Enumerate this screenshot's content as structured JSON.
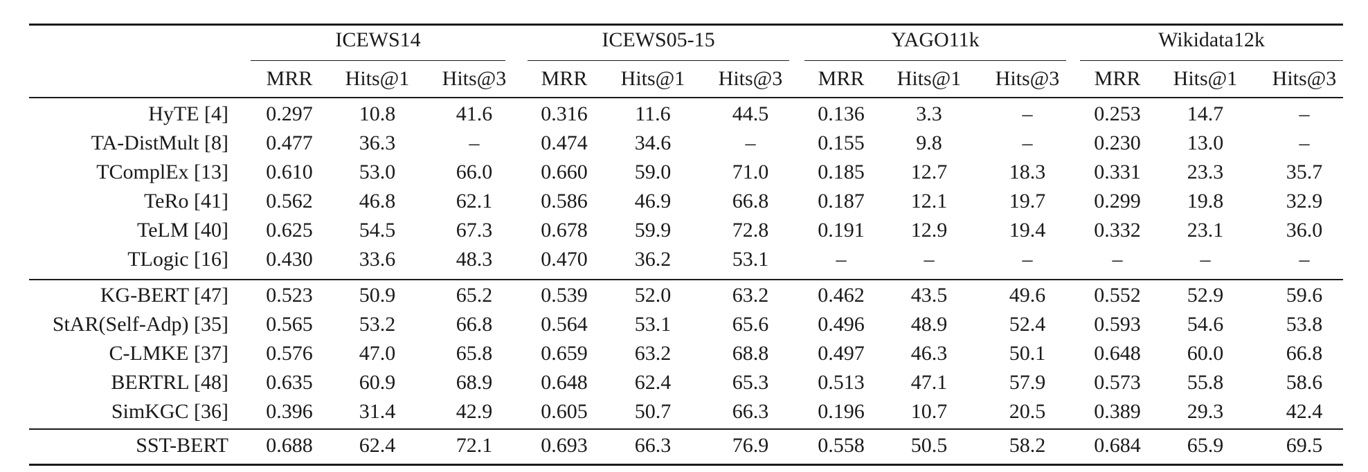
{
  "datasets": [
    "ICEWS14",
    "ICEWS05-15",
    "YAGO11k",
    "Wikidata12k"
  ],
  "metrics": [
    "MRR",
    "Hits@1",
    "Hits@3"
  ],
  "groups": [
    [
      {
        "method": "HyTE [4]",
        "values": [
          "0.297",
          "10.8",
          "41.6",
          "0.316",
          "11.6",
          "44.5",
          "0.136",
          "3.3",
          "–",
          "0.253",
          "14.7",
          "–"
        ]
      },
      {
        "method": "TA-DistMult [8]",
        "values": [
          "0.477",
          "36.3",
          "–",
          "0.474",
          "34.6",
          "–",
          "0.155",
          "9.8",
          "–",
          "0.230",
          "13.0",
          "–"
        ]
      },
      {
        "method": "TComplEx [13]",
        "values": [
          "0.610",
          "53.0",
          "66.0",
          "0.660",
          "59.0",
          "71.0",
          "0.185",
          "12.7",
          "18.3",
          "0.331",
          "23.3",
          "35.7"
        ]
      },
      {
        "method": "TeRo [41]",
        "values": [
          "0.562",
          "46.8",
          "62.1",
          "0.586",
          "46.9",
          "66.8",
          "0.187",
          "12.1",
          "19.7",
          "0.299",
          "19.8",
          "32.9"
        ]
      },
      {
        "method": "TeLM [40]",
        "values": [
          "0.625",
          "54.5",
          "67.3",
          "0.678",
          "59.9",
          "72.8",
          "0.191",
          "12.9",
          "19.4",
          "0.332",
          "23.1",
          "36.0"
        ]
      },
      {
        "method": "TLogic [16]",
        "values": [
          "0.430",
          "33.6",
          "48.3",
          "0.470",
          "36.2",
          "53.1",
          "–",
          "–",
          "–",
          "–",
          "–",
          "–"
        ]
      }
    ],
    [
      {
        "method": "KG-BERT [47]",
        "values": [
          "0.523",
          "50.9",
          "65.2",
          "0.539",
          "52.0",
          "63.2",
          "0.462",
          "43.5",
          "49.6",
          "0.552",
          "52.9",
          "59.6"
        ]
      },
      {
        "method": "StAR(Self-Adp) [35]",
        "values": [
          "0.565",
          "53.2",
          "66.8",
          "0.564",
          "53.1",
          "65.6",
          "0.496",
          "48.9",
          "52.4",
          "0.593",
          "54.6",
          "53.8"
        ]
      },
      {
        "method": "C-LMKE [37]",
        "values": [
          "0.576",
          "47.0",
          "65.8",
          "0.659",
          "63.2",
          "68.8",
          "0.497",
          "46.3",
          "50.1",
          "0.648",
          "60.0",
          "66.8"
        ]
      },
      {
        "method": "BERTRL [48]",
        "values": [
          "0.635",
          "60.9",
          "68.9",
          "0.648",
          "62.4",
          "65.3",
          "0.513",
          "47.1",
          "57.9",
          "0.573",
          "55.8",
          "58.6"
        ]
      },
      {
        "method": "SimKGC [36]",
        "values": [
          "0.396",
          "31.4",
          "42.9",
          "0.605",
          "50.7",
          "66.3",
          "0.196",
          "10.7",
          "20.5",
          "0.389",
          "29.3",
          "42.4"
        ]
      }
    ],
    [
      {
        "method": "SST-BERT",
        "values": [
          "0.688",
          "62.4",
          "72.1",
          "0.693",
          "66.3",
          "76.9",
          "0.558",
          "50.5",
          "58.2",
          "0.684",
          "65.9",
          "69.5"
        ]
      }
    ]
  ]
}
